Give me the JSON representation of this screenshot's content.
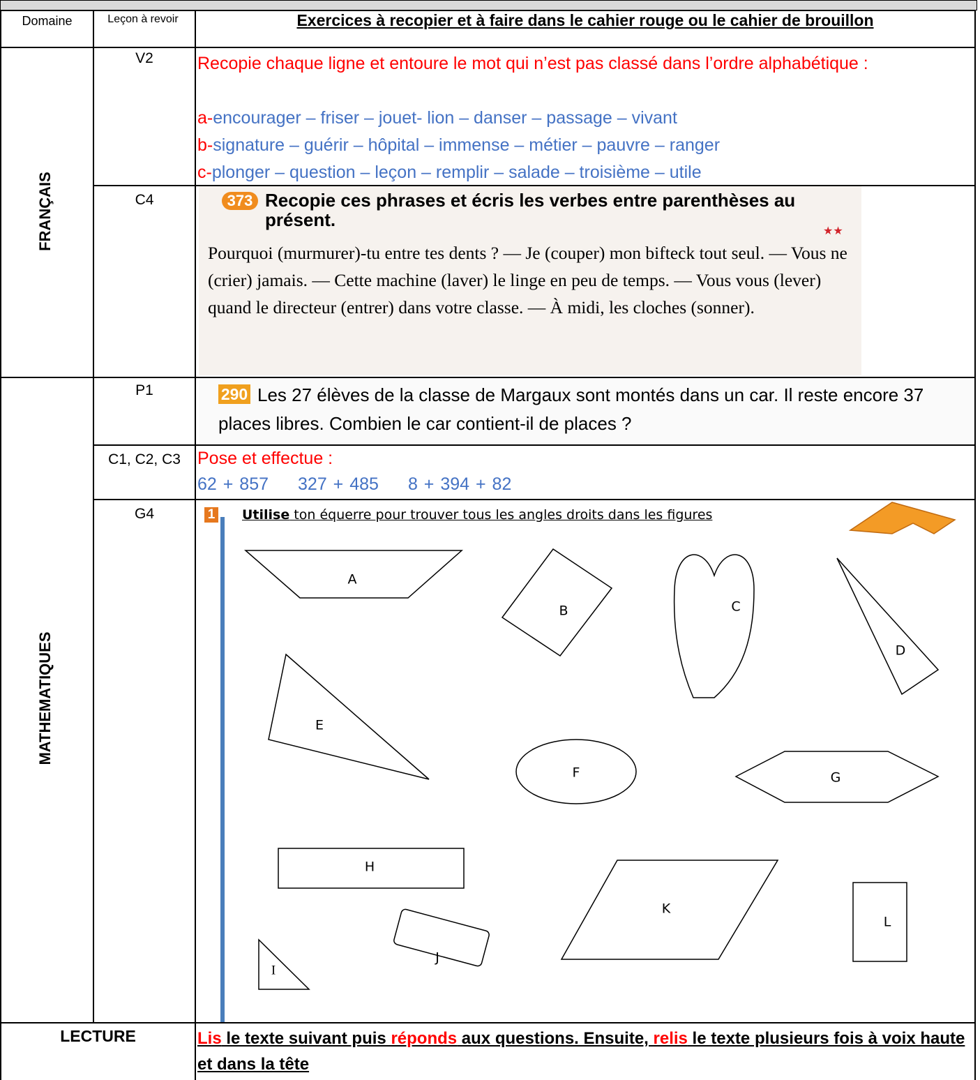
{
  "header": {
    "domain": "Domaine",
    "lesson": "Leçon à revoir",
    "exercises": "Exercices à recopier et à faire dans le cahier rouge ou le cahier de brouillon"
  },
  "francais": {
    "domain": "FRANÇAIS",
    "v2": {
      "lesson": "V2",
      "instruction": "Recopie chaque ligne et entoure le mot qui n’est pas classé dans l’ordre alphabétique :",
      "lines": [
        {
          "prefix": "a-",
          "words": "encourager – friser – jouet- lion – danser – passage – vivant"
        },
        {
          "prefix": "b-",
          "words": "signature – guérir – hôpital – immense – métier – pauvre – ranger"
        },
        {
          "prefix": "c-",
          "words": "plonger – question – leçon – remplir – salade – troisième – utile"
        }
      ]
    },
    "c4": {
      "lesson": "C4",
      "number": "373",
      "title": "Recopie ces phrases et écris les verbes entre parenthèses au présent.",
      "stars": "★★",
      "text": "Pourquoi (murmurer)-tu entre tes dents ? — Je (couper) mon bifteck tout seul. — Vous ne (crier) jamais. — Cette machine (laver) le linge en peu de temps. — Vous vous (lever) quand le directeur (entrer) dans votre classe. — À midi, les cloches (sonner)."
    }
  },
  "maths": {
    "domain": "MATHEMATIQUES",
    "p1": {
      "lesson": "P1",
      "number": "290",
      "text": "Les 27 élèves de la classe de Margaux sont montés dans un car. Il reste encore 37 places libres. Combien le car contient-il de places ?"
    },
    "c123": {
      "lesson": "C1, C2, C3",
      "instruction": "Pose et effectue :",
      "operations": [
        "62 + 857",
        "327 + 485",
        "8 + 394 + 82"
      ]
    },
    "g4": {
      "lesson": "G4",
      "number": "1",
      "verb": "Utilise",
      "instruction": " ton équerre pour trouver tous les angles droits dans les figures",
      "figures": [
        "A",
        "B",
        "C",
        "D",
        "E",
        "F",
        "G",
        "H",
        "I",
        "J",
        "K",
        "L"
      ]
    }
  },
  "lecture": {
    "domain": "LECTURE",
    "parts": [
      "Lis",
      " le texte suivant puis ",
      "réponds",
      " aux questions. Ensuite, ",
      "relis",
      " le texte plusieurs fois à voix haute et dans la tête"
    ]
  }
}
